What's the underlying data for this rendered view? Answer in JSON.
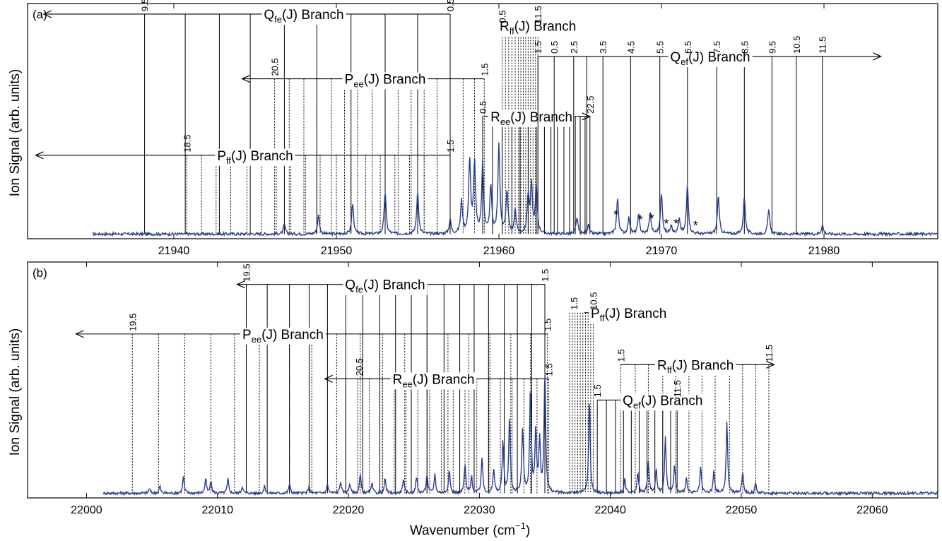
{
  "figure": {
    "xlabel_main": "Wavenumber (cm",
    "xlabel_sup": "−1",
    "xlabel_end": ")",
    "ylabel": "Ion Signal (arb. units)"
  },
  "colors": {
    "spectrum": "#2a3f8f",
    "axes": "#000000"
  },
  "chart_data": [
    {
      "type": "line",
      "panel_label": "(a)",
      "xlim": [
        21931,
        21987
      ],
      "ylim": [
        0,
        1
      ],
      "xticks": [
        21940,
        21950,
        21960,
        21970,
        21980
      ],
      "tick_labels": [
        "21940",
        "21950",
        "21960",
        "21970",
        "21980"
      ],
      "spectrum": {
        "start": 21935,
        "end": 21987,
        "baseline": 0.02,
        "peaks": [
          [
            21946.8,
            0.04
          ],
          [
            21948.9,
            0.08
          ],
          [
            21951.0,
            0.13
          ],
          [
            21953.0,
            0.18
          ],
          [
            21955.0,
            0.18
          ],
          [
            21957.0,
            0.06
          ],
          [
            21957.7,
            0.14
          ],
          [
            21958.2,
            0.32
          ],
          [
            21958.5,
            0.3
          ],
          [
            21959.0,
            0.3
          ],
          [
            21959.5,
            0.2
          ],
          [
            21960.0,
            0.38
          ],
          [
            21960.5,
            0.18
          ],
          [
            21961.0,
            0.1
          ],
          [
            21961.8,
            0.16
          ],
          [
            21962.0,
            0.2
          ],
          [
            21962.3,
            0.2
          ],
          [
            21964.8,
            0.07
          ],
          [
            21965.5,
            0.04
          ],
          [
            21967.3,
            0.15
          ],
          [
            21968.0,
            0.07
          ],
          [
            21968.6,
            0.08
          ],
          [
            21969.3,
            0.09
          ],
          [
            21970.0,
            0.17
          ],
          [
            21970.6,
            0.04
          ],
          [
            21971.1,
            0.06
          ],
          [
            21971.6,
            0.21
          ],
          [
            21973.5,
            0.16
          ],
          [
            21975.1,
            0.16
          ],
          [
            21976.6,
            0.1
          ],
          [
            21979.9,
            0.04
          ]
        ]
      },
      "asterisks": [
        21967.2,
        21968.7,
        21969.4,
        21970.3,
        21970.9,
        21972.1
      ],
      "branches": [
        {
          "label_main": "Q",
          "label_sub": "fe",
          "label_rest": "(J) Branch",
          "label_x": 21948.0,
          "bar_y": 0.955,
          "bar_start": 21957.0,
          "bar_end": 21932.0,
          "lines": [
            21938.2,
            21940.7,
            21942.8,
            21944.7,
            21946.8,
            21948.8,
            21950.9,
            21953.0,
            21955.0,
            21957.0
          ],
          "style": "solid",
          "line_bottom": 0.02,
          "jlabels": [
            {
              "x": 21938.2,
              "text": "9.5"
            },
            {
              "x": 21957.0,
              "text": "0.5"
            }
          ]
        },
        {
          "label_main": "P",
          "label_sub": "ee",
          "label_rest": "(J) Branch",
          "label_x": 21953.0,
          "bar_y": 0.68,
          "bar_start": 21959.1,
          "bar_end": 21944.2,
          "lines": [
            21946.2,
            21947.1,
            21948.0,
            21948.8,
            21949.7,
            21950.5,
            21951.3,
            21952.2,
            21953.0,
            21953.8,
            21954.6,
            21955.4,
            21956.2,
            21957.0,
            21957.8,
            21958.5,
            21959.1
          ],
          "style": "dotted",
          "line_bottom": 0.02,
          "jlabels": [
            {
              "x": 21946.2,
              "text": "20.5"
            },
            {
              "x": 21959.1,
              "text": "1.5"
            }
          ]
        },
        {
          "label_main": "P",
          "label_sub": "ff",
          "label_rest": "(J) Branch",
          "label_x": 21945.0,
          "bar_y": 0.355,
          "bar_start": 21957.0,
          "bar_end": 21931.5,
          "lines": [
            21940.8,
            21941.7,
            21942.6,
            21943.5,
            21944.5,
            21945.4,
            21946.3,
            21947.2,
            21948.1,
            21949.0,
            21950.0,
            21950.9,
            21951.8,
            21952.7,
            21953.6,
            21954.5,
            21955.4,
            21956.2,
            21957.0
          ],
          "style": "dotted",
          "line_bottom": 0.02,
          "jlabels": [
            {
              "x": 21940.8,
              "text": "18.5"
            },
            {
              "x": 21957.0,
              "text": "1.5"
            }
          ]
        },
        {
          "label_main": "R",
          "label_sub": "ff",
          "label_rest": "(J) Branch",
          "label_x": 21962.4,
          "bar_y": 0.905,
          "bar_start": 21962.4,
          "bar_end": 21960.0,
          "lines": [
            21960.2,
            21960.4,
            21960.6,
            21960.8,
            21961.0,
            21961.2,
            21961.35,
            21961.5,
            21961.65,
            21961.8,
            21961.95,
            21962.1,
            21962.25,
            21962.4
          ],
          "style": "dotted",
          "line_bottom": 0.02,
          "jlabels": [
            {
              "x": 21960.2,
              "text": "0.5"
            },
            {
              "x": 21962.4,
              "text": "11.5"
            }
          ]
        },
        {
          "label_main": "R",
          "label_sub": "ee",
          "label_rest": "(J) Branch",
          "label_x": 21962.0,
          "bar_y": 0.52,
          "bar_start": 21959.0,
          "bar_end": 21965.6,
          "lines": [
            21959.0,
            21959.6,
            21960.2,
            21960.8,
            21961.3,
            21961.8,
            21962.3,
            21962.8,
            21963.2,
            21963.6,
            21964.0,
            21964.35,
            21964.7,
            21965.0,
            21965.3,
            21965.6
          ],
          "style": "solid",
          "line_bottom": 0.02,
          "jlabels": [
            {
              "x": 21959.0,
              "text": "0.5"
            },
            {
              "x": 21965.6,
              "text": "22.5"
            }
          ]
        },
        {
          "label_main": "Q",
          "label_sub": "ef",
          "label_rest": "(J) Branch",
          "label_x": 21973.0,
          "bar_y": 0.775,
          "bar_start": 21962.4,
          "bar_end": 21983.5,
          "lines": [
            21962.4,
            21963.4,
            21964.6,
            21965.4,
            21966.4,
            21968.1,
            21969.9,
            21971.6,
            21973.4,
            21975.1,
            21976.8,
            21978.3,
            21979.9
          ],
          "style": "solid",
          "line_bottom": 0.02,
          "jlabels": [
            {
              "x": 21962.4,
              "text": "1.5"
            },
            {
              "x": 21964.6,
              "text": "2.5"
            },
            {
              "x": 21963.4,
              "text": "0.5"
            },
            {
              "x": 21966.4,
              "text": "3.5"
            },
            {
              "x": 21968.1,
              "text": "4.5"
            },
            {
              "x": 21969.9,
              "text": "5.5"
            },
            {
              "x": 21971.6,
              "text": "6.5"
            },
            {
              "x": 21973.4,
              "text": "7.5"
            },
            {
              "x": 21975.1,
              "text": "8.5"
            },
            {
              "x": 21976.8,
              "text": "9.5"
            },
            {
              "x": 21978.3,
              "text": "10.5"
            },
            {
              "x": 21979.9,
              "text": "11.5"
            }
          ]
        }
      ]
    },
    {
      "type": "line",
      "panel_label": "(b)",
      "xlim": [
        21995.5,
        22065
      ],
      "ylim": [
        0,
        1
      ],
      "xticks": [
        22000,
        22010,
        22020,
        22030,
        22040,
        22050,
        22060
      ],
      "tick_labels": [
        "22000",
        "22010",
        "22020",
        "22030",
        "22040",
        "22050",
        "22060"
      ],
      "spectrum": {
        "start": 22001.3,
        "end": 22065,
        "baseline": 0.02,
        "peaks": [
          [
            22004.8,
            0.02
          ],
          [
            22005.6,
            0.03
          ],
          [
            22007.4,
            0.07
          ],
          [
            22009.1,
            0.06
          ],
          [
            22009.5,
            0.05
          ],
          [
            22010.8,
            0.06
          ],
          [
            22011.9,
            0.03
          ],
          [
            22013.6,
            0.03
          ],
          [
            22015.5,
            0.04
          ],
          [
            22017.0,
            0.03
          ],
          [
            22018.4,
            0.04
          ],
          [
            22019.4,
            0.05
          ],
          [
            22020.1,
            0.04
          ],
          [
            22020.9,
            0.08
          ],
          [
            22021.8,
            0.04
          ],
          [
            22022.8,
            0.06
          ],
          [
            22024.2,
            0.06
          ],
          [
            22025.2,
            0.07
          ],
          [
            22026.0,
            0.08
          ],
          [
            22026.6,
            0.08
          ],
          [
            22027.7,
            0.1
          ],
          [
            22028.9,
            0.12
          ],
          [
            22029.4,
            0.07
          ],
          [
            22030.2,
            0.15
          ],
          [
            22031.1,
            0.1
          ],
          [
            22031.8,
            0.22
          ],
          [
            22032.3,
            0.32
          ],
          [
            22033.3,
            0.28
          ],
          [
            22033.9,
            0.45
          ],
          [
            22034.3,
            0.26
          ],
          [
            22034.6,
            0.22
          ],
          [
            22035.0,
            0.52
          ],
          [
            22038.4,
            0.4
          ],
          [
            22041.1,
            0.06
          ],
          [
            22042.1,
            0.09
          ],
          [
            22042.9,
            0.14
          ],
          [
            22043.5,
            0.1
          ],
          [
            22044.2,
            0.24
          ],
          [
            22044.9,
            0.12
          ],
          [
            22045.8,
            0.07
          ],
          [
            22046.9,
            0.11
          ],
          [
            22047.9,
            0.09
          ],
          [
            22048.9,
            0.3
          ],
          [
            22050.1,
            0.09
          ],
          [
            22051.1,
            0.04
          ]
        ]
      },
      "asterisks": [],
      "branches": [
        {
          "label_main": "Q",
          "label_sub": "fe",
          "label_rest": "(J) Branch",
          "label_x": 22022.8,
          "bar_y": 0.905,
          "bar_start": 22035.0,
          "bar_end": 22011.5,
          "lines": [
            22012.2,
            22013.8,
            22015.5,
            22017.0,
            22018.4,
            22019.8,
            22021.1,
            22022.4,
            22023.6,
            22024.8,
            22026.0,
            22027.3,
            22028.5,
            22029.6,
            22030.7,
            22031.9,
            22032.9,
            22034.0,
            22035.0
          ],
          "style": "solid",
          "line_bottom": 0.02,
          "jlabels": [
            {
              "x": 22012.2,
              "text": "19.5"
            },
            {
              "x": 22035.0,
              "text": "1.5"
            }
          ]
        },
        {
          "label_main": "P",
          "label_sub": "ee",
          "label_rest": "(J) Branch",
          "label_x": 22015.0,
          "bar_y": 0.695,
          "bar_start": 22035.2,
          "bar_end": 21999.2,
          "lines": [
            22003.5,
            22005.5,
            22007.5,
            22009.5,
            22011.3,
            22013.2,
            22015.5,
            22017.2,
            22019.1,
            22020.9,
            22022.6,
            22024.3,
            22026.0,
            22027.6,
            22029.2,
            22030.8,
            22032.4,
            22033.9,
            22035.2
          ],
          "style": "dotted",
          "line_bottom": 0.02,
          "jlabels": [
            {
              "x": 22003.5,
              "text": "19.5"
            },
            {
              "x": 22035.2,
              "text": "1.5"
            }
          ]
        },
        {
          "label_main": "R",
          "label_sub": "ee",
          "label_rest": "(J) Branch",
          "label_x": 22026.5,
          "bar_y": 0.505,
          "bar_start": 22035.3,
          "bar_end": 22018.2,
          "lines": [
            22019.8,
            22020.7,
            22021.6,
            22022.6,
            22023.5,
            22024.4,
            22025.3,
            22026.2,
            22027.1,
            22028.0,
            22028.9,
            22029.8,
            22030.7,
            22031.6,
            22032.5,
            22033.4,
            22034.4,
            22035.3
          ],
          "style": "dotted",
          "line_bottom": 0.02,
          "jlabels": [
            {
              "x": 22020.8,
              "text": "20.5"
            },
            {
              "x": 22035.3,
              "text": "1.5"
            }
          ]
        },
        {
          "label_main": "P",
          "label_sub": "ff",
          "label_rest": "(J) Branch",
          "label_x": 22041.4,
          "bar_y": 0.785,
          "bar_start": 22038.0,
          "bar_end": 22040.3,
          "lines": [
            22036.9,
            22037.1,
            22037.3,
            22037.5,
            22037.7,
            22037.9,
            22038.1,
            22038.3,
            22038.5,
            22038.7
          ],
          "style": "dotted",
          "line_bottom": 0.02,
          "jlabels": [
            {
              "x": 22037.2,
              "text": "1.5"
            },
            {
              "x": 22038.7,
              "text": "10.5"
            }
          ]
        },
        {
          "label_main": "R",
          "label_sub": "ff",
          "label_rest": "(J) Branch",
          "label_x": 22046.5,
          "bar_y": 0.565,
          "bar_start": 22040.8,
          "bar_end": 22052.5,
          "lines": [
            22040.8,
            22041.9,
            22042.9,
            22044.0,
            22045.0,
            22046.0,
            22047.0,
            22048.0,
            22049.1,
            22050.1,
            22051.1,
            22052.1
          ],
          "style": "dotted",
          "line_bottom": 0.02,
          "jlabels": [
            {
              "x": 22040.8,
              "text": "1.5"
            },
            {
              "x": 22052.1,
              "text": "11.5"
            }
          ]
        },
        {
          "label_main": "Q",
          "label_sub": "ef",
          "label_rest": "(J) Branch",
          "label_x": 22044.0,
          "bar_y": 0.415,
          "bar_start": 22039.0,
          "bar_end": 22045.7,
          "lines": [
            22039.0,
            22039.7,
            22040.4,
            22041.0,
            22041.6,
            22042.2,
            22042.8,
            22043.4,
            22044.0,
            22044.6,
            22045.1
          ],
          "style": "solid",
          "line_bottom": 0.02,
          "jlabels": [
            {
              "x": 22039.0,
              "text": "1.5"
            },
            {
              "x": 22045.1,
              "text": "11.5"
            }
          ]
        }
      ]
    }
  ]
}
